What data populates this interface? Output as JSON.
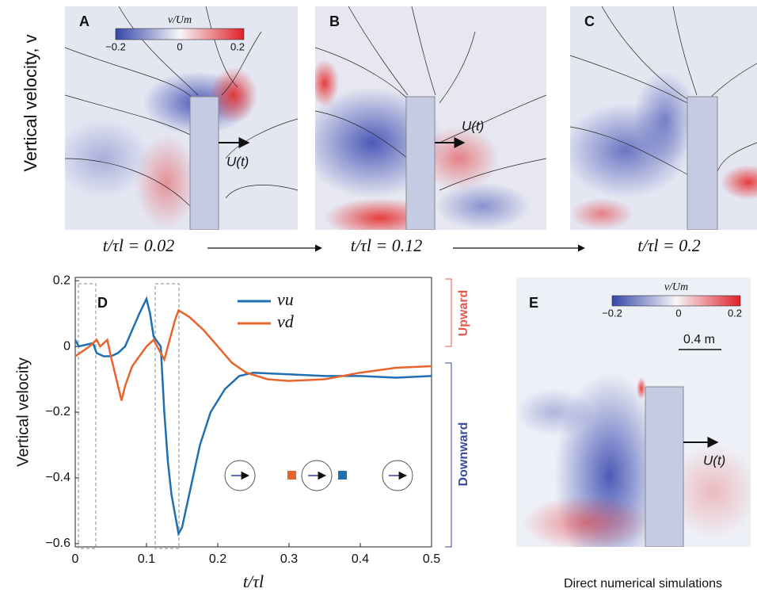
{
  "figure": {
    "ylabel_top": "Vertical velocity, v",
    "colorbar": {
      "title": "v/Um",
      "ticks": [
        "−0.2",
        "0",
        "0.2"
      ]
    },
    "panels": [
      {
        "label": "A",
        "time": "t/τl = 0.02",
        "force": "U(t)"
      },
      {
        "label": "B",
        "time": "t/τl = 0.12",
        "force": "U(t)"
      },
      {
        "label": "C",
        "time": "t/τl = 0.2"
      }
    ],
    "bracket": {
      "up": "Upward",
      "down": "Downward"
    },
    "panel_e": {
      "label": "E",
      "scale": "0.4 m",
      "force": "U(t)",
      "caption": "Direct numerical simulations"
    }
  },
  "chart_data": {
    "type": "line",
    "label": "D",
    "xlabel": "t/τl",
    "ylabel": "Vertical velocity",
    "xlim": [
      0,
      0.5
    ],
    "ylim": [
      -0.61,
      0.21
    ],
    "xticks": [
      0,
      0.1,
      0.2,
      0.3,
      0.4,
      0.5
    ],
    "yticks": [
      {
        "value": -0.6,
        "label": "−0.6"
      },
      {
        "value": -0.4,
        "label": "−0.4"
      },
      {
        "value": -0.2,
        "label": "−0.2"
      },
      0,
      0.2
    ],
    "series": [
      {
        "name": "vu",
        "color": "#1f6fb3",
        "x": [
          0,
          0.005,
          0.025,
          0.03,
          0.04,
          0.05,
          0.06,
          0.07,
          0.08,
          0.09,
          0.1,
          0.105,
          0.11,
          0.12,
          0.125,
          0.13,
          0.135,
          0.145,
          0.15,
          0.16,
          0.175,
          0.19,
          0.21,
          0.23,
          0.25,
          0.3,
          0.35,
          0.4,
          0.45,
          0.5
        ],
        "values": [
          0.02,
          0.0,
          0.01,
          -0.02,
          -0.03,
          -0.03,
          -0.02,
          0.0,
          0.05,
          0.1,
          0.145,
          0.1,
          0.03,
          0.0,
          -0.2,
          -0.35,
          -0.45,
          -0.57,
          -0.55,
          -0.45,
          -0.3,
          -0.2,
          -0.13,
          -0.09,
          -0.08,
          -0.085,
          -0.09,
          -0.09,
          -0.095,
          -0.09
        ]
      },
      {
        "name": "vd",
        "color": "#e8642c",
        "x": [
          0,
          0.02,
          0.03,
          0.035,
          0.045,
          0.05,
          0.06,
          0.065,
          0.07,
          0.08,
          0.09,
          0.1,
          0.11,
          0.12,
          0.125,
          0.14,
          0.145,
          0.16,
          0.18,
          0.2,
          0.22,
          0.24,
          0.27,
          0.3,
          0.35,
          0.4,
          0.45,
          0.5
        ],
        "values": [
          -0.03,
          0.0,
          0.02,
          0.0,
          0.02,
          -0.03,
          -0.12,
          -0.165,
          -0.12,
          -0.06,
          -0.03,
          0.0,
          0.02,
          -0.02,
          -0.04,
          0.08,
          0.11,
          0.09,
          0.05,
          0.0,
          -0.05,
          -0.08,
          -0.1,
          -0.105,
          -0.1,
          -0.08,
          -0.065,
          -0.06
        ]
      }
    ]
  }
}
